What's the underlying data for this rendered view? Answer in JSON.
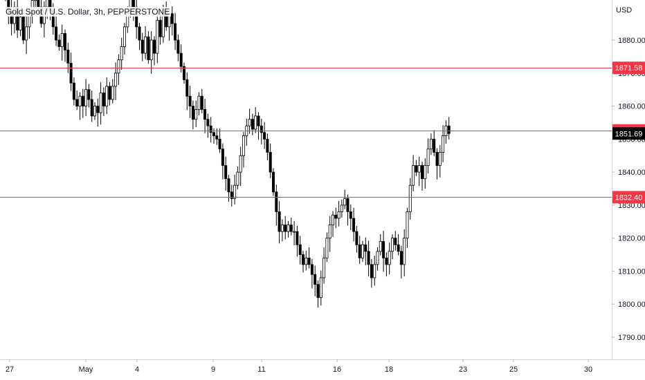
{
  "header": {
    "symbol_title": "Gold Spot / U.S. Dollar, 3h, PEPPERSTONE"
  },
  "price_axis": {
    "unit": "USD"
  },
  "colors": {
    "candle": "#000000",
    "level_line": "#f23645",
    "level_tag_bg": "#f23645",
    "last_tag_bg": "#000000",
    "tag_text": "#ffffff",
    "axis_text": "#131722",
    "axis_border": "#d1d4dc"
  },
  "chart_data": {
    "type": "candlestick",
    "title": "Gold Spot / U.S. Dollar, 3h, PEPPERSTONE",
    "y_unit": "USD",
    "ylim": [
      1783,
      1896
    ],
    "y_ticks": [
      "1790.00",
      "1800.00",
      "1810.00",
      "1820.00",
      "1830.00",
      "1840.00",
      "1850.00",
      "1860.00",
      "1870.00",
      "1880.00"
    ],
    "x_ticks": [
      "27",
      "May",
      "4",
      "9",
      "11",
      "16",
      "18",
      "23",
      "25",
      "30"
    ],
    "grid": false,
    "horizontal_levels": [
      "1871.58",
      "1852.63",
      "1832.40"
    ],
    "last_price": "1851.69",
    "candle_closes": [
      1893,
      1889,
      1885,
      1890,
      1883,
      1887,
      1880,
      1884,
      1888,
      1892,
      1895,
      1890,
      1885,
      1890,
      1894,
      1889,
      1884,
      1880,
      1878,
      1882,
      1877,
      1873,
      1867,
      1862,
      1860,
      1863,
      1860,
      1865,
      1862,
      1857,
      1860,
      1858,
      1864,
      1860,
      1866,
      1862,
      1866,
      1870,
      1874,
      1878,
      1884,
      1888,
      1894,
      1890,
      1884,
      1880,
      1876,
      1881,
      1874,
      1880,
      1876,
      1886,
      1881,
      1889,
      1884,
      1888,
      1885,
      1880,
      1876,
      1872,
      1868,
      1863,
      1860,
      1856,
      1859,
      1863,
      1859,
      1856,
      1854,
      1852,
      1851,
      1850,
      1847,
      1842,
      1838,
      1834,
      1832,
      1836,
      1840,
      1845,
      1851,
      1854,
      1856,
      1853,
      1857,
      1854,
      1852,
      1850,
      1846,
      1840,
      1834,
      1828,
      1822,
      1824,
      1822,
      1824,
      1822,
      1822,
      1818,
      1815,
      1812,
      1814,
      1812,
      1809,
      1806,
      1802,
      1808,
      1814,
      1820,
      1824,
      1827,
      1826,
      1828,
      1830,
      1832,
      1828,
      1826,
      1822,
      1818,
      1814,
      1818,
      1816,
      1812,
      1808,
      1812,
      1816,
      1819,
      1814,
      1812,
      1816,
      1820,
      1818,
      1816,
      1812,
      1820,
      1828,
      1836,
      1842,
      1840,
      1842,
      1838,
      1842,
      1847,
      1850,
      1846,
      1842,
      1846,
      1851,
      1854,
      1851.69
    ]
  }
}
